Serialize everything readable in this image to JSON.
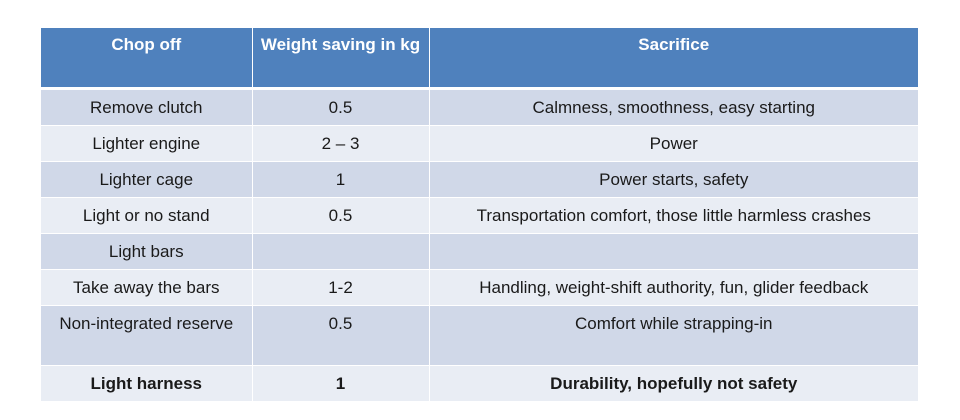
{
  "table": {
    "headers": [
      "Chop off",
      "Weight saving in kg",
      "Sacrifice"
    ],
    "rows": [
      {
        "chop": "Remove clutch",
        "weight": "0.5",
        "sacrifice": "Calmness, smoothness, easy starting"
      },
      {
        "chop": "Lighter engine",
        "weight": "2 – 3",
        "sacrifice": "Power"
      },
      {
        "chop": "Lighter cage",
        "weight": "1",
        "sacrifice": "Power starts, safety"
      },
      {
        "chop": "Light or no stand",
        "weight": "0.5",
        "sacrifice": "Transportation comfort, those little harmless crashes"
      },
      {
        "chop": "Light bars",
        "weight": "",
        "sacrifice": ""
      },
      {
        "chop": "Take away the bars",
        "weight": "1-2",
        "sacrifice": "Handling, weight-shift authority, fun, glider feedback"
      },
      {
        "chop": "Non-integrated reserve",
        "weight": "0.5",
        "sacrifice": "Comfort while strapping-in"
      },
      {
        "chop": "Light harness",
        "weight": "1",
        "sacrifice": "Durability, hopefully not safety"
      }
    ]
  },
  "colors": {
    "header_bg": "#4f81bd",
    "row_odd_bg": "#d0d8e8",
    "row_even_bg": "#e9edf4"
  }
}
